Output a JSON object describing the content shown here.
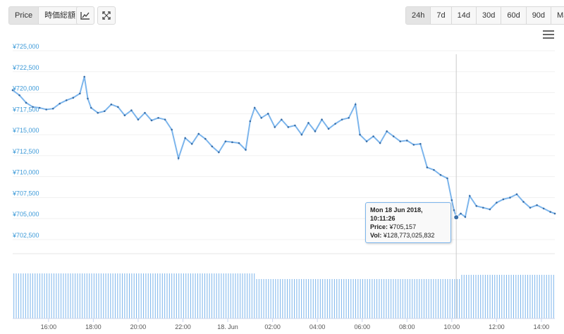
{
  "toolbar": {
    "left_tabs": [
      "Price",
      "時価総額"
    ],
    "active_left": "Price",
    "icons": [
      "line-chart-icon",
      "fullscreen-icon"
    ],
    "ranges": [
      "24h",
      "7d",
      "14d",
      "30d",
      "60d",
      "90d",
      "Max"
    ],
    "active_range": "24h"
  },
  "tooltip": {
    "title": "Mon 18 Jun 2018, 10:11:26",
    "price_label": "Price:",
    "price_value": "¥705,157",
    "vol_label": "Vol:",
    "vol_value": "¥128,773,025,832"
  },
  "colors": {
    "line": "#7cb5ec",
    "volume": "#7cb5ec",
    "marker": "#3a6fa8",
    "axis_text": "#3d9ad8"
  },
  "chart_data": {
    "type": "line",
    "title": "",
    "xlabel": "",
    "ylabel": "",
    "ylim": [
      702500,
      725000
    ],
    "yticks": [
      "¥702,500",
      "¥705,000",
      "¥707,500",
      "¥710,000",
      "¥712,500",
      "¥715,000",
      "¥717,500",
      "¥720,000",
      "¥722,500",
      "¥725,000"
    ],
    "ytick_values": [
      702500,
      705000,
      707500,
      710000,
      712500,
      715000,
      717500,
      720000,
      722500,
      725000
    ],
    "x_start_hour": 14.4,
    "x_end_hour": 38.6,
    "xticks": [
      "16:00",
      "18:00",
      "20:00",
      "22:00",
      "18. Jun",
      "02:00",
      "04:00",
      "06:00",
      "08:00",
      "10:00",
      "12:00",
      "14:00"
    ],
    "xtick_hours": [
      16,
      18,
      20,
      22,
      24,
      26,
      28,
      30,
      32,
      34,
      36,
      38
    ],
    "series": [
      {
        "values": [
          [
            14.4,
            720300
          ],
          [
            14.7,
            719700
          ],
          [
            15.0,
            718800
          ],
          [
            15.3,
            718300
          ],
          [
            15.6,
            718200
          ],
          [
            15.9,
            718000
          ],
          [
            16.2,
            718100
          ],
          [
            16.5,
            718700
          ],
          [
            16.8,
            719100
          ],
          [
            17.1,
            719400
          ],
          [
            17.4,
            719900
          ],
          [
            17.6,
            721900
          ],
          [
            17.75,
            719300
          ],
          [
            17.9,
            718200
          ],
          [
            18.2,
            717600
          ],
          [
            18.5,
            717800
          ],
          [
            18.8,
            718600
          ],
          [
            19.1,
            718300
          ],
          [
            19.4,
            717300
          ],
          [
            19.7,
            717900
          ],
          [
            20.0,
            716800
          ],
          [
            20.3,
            717600
          ],
          [
            20.6,
            716700
          ],
          [
            20.9,
            717000
          ],
          [
            21.2,
            716800
          ],
          [
            21.5,
            715600
          ],
          [
            21.8,
            712200
          ],
          [
            22.1,
            714600
          ],
          [
            22.4,
            713900
          ],
          [
            22.7,
            715100
          ],
          [
            23.0,
            714500
          ],
          [
            23.3,
            713600
          ],
          [
            23.6,
            712900
          ],
          [
            23.9,
            714200
          ],
          [
            24.2,
            714100
          ],
          [
            24.5,
            714000
          ],
          [
            24.8,
            713200
          ],
          [
            25.0,
            716600
          ],
          [
            25.2,
            718200
          ],
          [
            25.5,
            717000
          ],
          [
            25.8,
            717500
          ],
          [
            26.1,
            715900
          ],
          [
            26.4,
            716800
          ],
          [
            26.7,
            715900
          ],
          [
            27.0,
            716100
          ],
          [
            27.3,
            715000
          ],
          [
            27.6,
            716400
          ],
          [
            27.9,
            715400
          ],
          [
            28.2,
            716800
          ],
          [
            28.5,
            715700
          ],
          [
            28.8,
            716300
          ],
          [
            29.1,
            716800
          ],
          [
            29.4,
            717000
          ],
          [
            29.7,
            718600
          ],
          [
            29.9,
            715000
          ],
          [
            30.2,
            714200
          ],
          [
            30.5,
            714800
          ],
          [
            30.8,
            714000
          ],
          [
            31.1,
            715400
          ],
          [
            31.4,
            714800
          ],
          [
            31.7,
            714200
          ],
          [
            32.0,
            714300
          ],
          [
            32.3,
            713800
          ],
          [
            32.6,
            713900
          ],
          [
            32.9,
            711100
          ],
          [
            33.2,
            710800
          ],
          [
            33.5,
            710200
          ],
          [
            33.8,
            709800
          ],
          [
            34.0,
            707200
          ],
          [
            34.1,
            706000
          ],
          [
            34.2,
            705157
          ],
          [
            34.4,
            705600
          ],
          [
            34.6,
            705200
          ],
          [
            34.8,
            707700
          ],
          [
            35.1,
            706500
          ],
          [
            35.4,
            706300
          ],
          [
            35.7,
            706100
          ],
          [
            36.0,
            706900
          ],
          [
            36.3,
            707300
          ],
          [
            36.6,
            707500
          ],
          [
            36.9,
            707900
          ],
          [
            37.2,
            707000
          ],
          [
            37.5,
            706300
          ],
          [
            37.8,
            706600
          ],
          [
            38.1,
            706200
          ],
          [
            38.4,
            705800
          ],
          [
            38.6,
            705600
          ]
        ]
      }
    ],
    "volume_bars": 230
  }
}
